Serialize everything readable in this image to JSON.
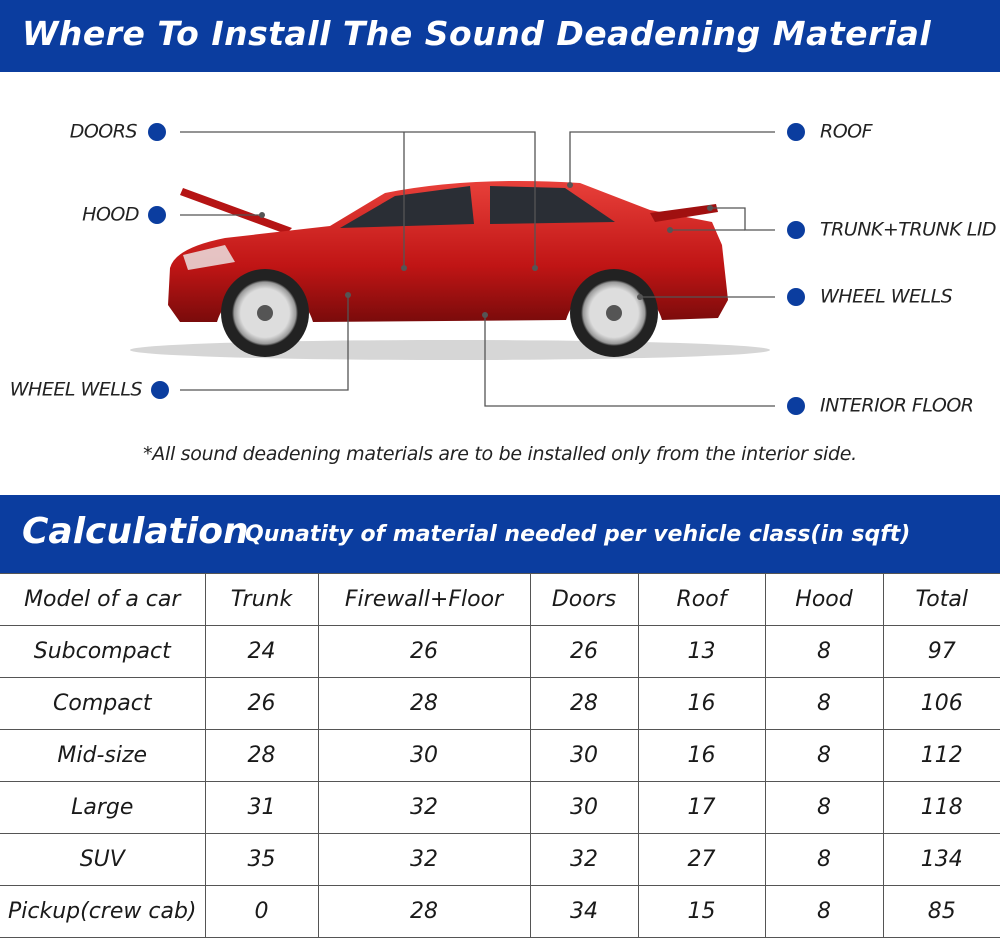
{
  "header": {
    "title": "Where To Install The Sound Deadening Material"
  },
  "labels": [
    "DOORS",
    "HOOD",
    "WHEEL WELLS",
    "ROOF",
    "TRUNK+TRUNK LID",
    "WHEEL WELLS",
    "INTERIOR FLOOR"
  ],
  "note": "*All sound deadening materials are to be installed only from the interior side.",
  "calculation": {
    "title": "Calculation",
    "subtitle": "Qunatity of material needed per vehicle class(in sqft)"
  },
  "table": {
    "header": [
      "Model of a car",
      "Trunk",
      "Firewall+Floor",
      "Doors",
      "Roof",
      "Hood",
      "Total"
    ],
    "rows": [
      [
        "Subcompact",
        24,
        26,
        26,
        13,
        8,
        97
      ],
      [
        "Compact",
        26,
        28,
        28,
        16,
        8,
        106
      ],
      [
        "Mid-size",
        28,
        30,
        30,
        16,
        8,
        112
      ],
      [
        "Large",
        31,
        32,
        30,
        17,
        8,
        118
      ],
      [
        "SUV",
        35,
        32,
        32,
        27,
        8,
        134
      ],
      [
        "Pickup(crew cab)",
        0,
        28,
        34,
        15,
        8,
        85
      ]
    ]
  }
}
